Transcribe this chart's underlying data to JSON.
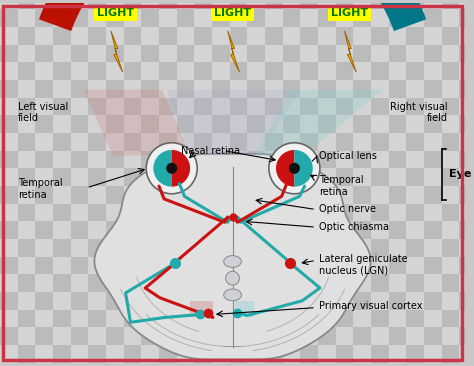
{
  "background_color": "#c8c8c8",
  "checkerboard_light": "#d4d4d4",
  "checkerboard_dark": "#bbbbbb",
  "border_color": "#cc3344",
  "light_bg_color": "#ffff00",
  "light_text_color": "#007700",
  "bolt_color": "#ffaa00",
  "bolt_outline": "#996600",
  "arc_left_color": "#bb1100",
  "arc_mid_color": "#552222",
  "arc_right_color": "#007788",
  "cone_left_color": "#cc8888",
  "cone_right_color": "#88cccc",
  "cone_center_color": "#aaaacc",
  "brain_fill": "#e0e0e0",
  "brain_outline": "#888888",
  "stem_fill": "#d8d8d8",
  "red_color": "#cc1111",
  "cyan_color": "#22aaaa",
  "eye_outline": "#666666",
  "eye_white": "#f0f0f0",
  "lgn_bone_fill": "#d0d0d8",
  "labels": {
    "light": "LIGHT",
    "left_visual_field": "Left visual\nfield",
    "right_visual_field": "Right visual\nfield",
    "nasal_retina": "Nasal retina",
    "temporal_retina_left": "Temporal\nretina",
    "optical_lens": "Optical lens",
    "temporal_retina_right": "Temporal\nretina",
    "eye": "Eye",
    "optic_nerve": "Optic nerve",
    "optic_chiasma": "Optic chiasma",
    "lgn": "Lateral geniculate\nnucleus (LGN)",
    "primary_visual_cortex": "Primary visual cortex"
  }
}
